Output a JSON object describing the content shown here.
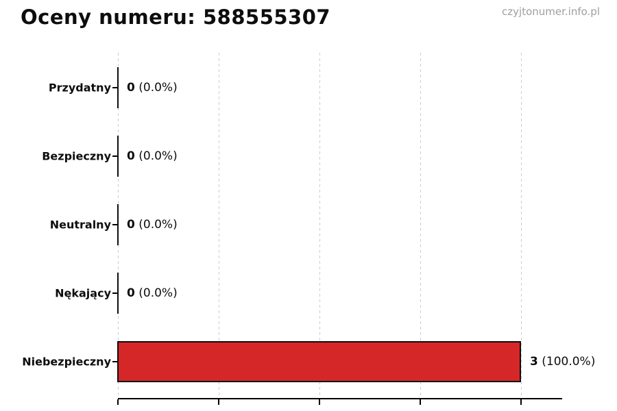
{
  "header": {
    "title": "Oceny numeru: 588555307",
    "watermark": "czyjtonumer.info.pl"
  },
  "chart_data": {
    "type": "bar",
    "orientation": "horizontal",
    "title": "Oceny numeru: 588555307",
    "categories": [
      "Przydatny",
      "Bezpieczny",
      "Neutralny",
      "Nękający",
      "Niebezpieczny"
    ],
    "values": [
      0,
      0,
      0,
      0,
      3
    ],
    "counts": [
      0,
      0,
      0,
      0,
      3
    ],
    "percents": [
      "0.0%",
      "0.0%",
      "0.0%",
      "0.0%",
      "100.0%"
    ],
    "total": 3,
    "xlim": [
      0,
      3
    ],
    "gridline_values": [
      0,
      0.75,
      1.5,
      2.25,
      3
    ],
    "grid": "vertical-dashed",
    "x_tick_labels_visible": false,
    "bar_color": "#d62728",
    "bar_edge_color": "#0d0d0d",
    "gridline_color": "#cccccc",
    "watermark_color": "#9e9e9e"
  }
}
